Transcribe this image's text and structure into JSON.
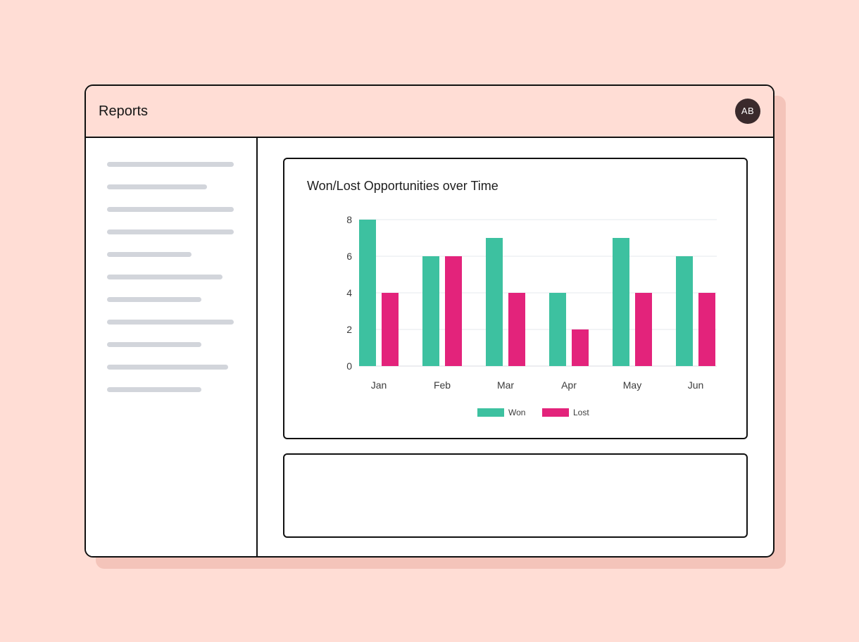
{
  "app": {
    "title": "Reports",
    "avatar_initials": "AB"
  },
  "colors": {
    "won": "#3DC1A0",
    "lost": "#E3237B",
    "background": "#FFDDD5"
  },
  "chart_data": {
    "type": "bar",
    "title": "Won/Lost Opportunities over Time",
    "categories": [
      "Jan",
      "Feb",
      "Mar",
      "Apr",
      "May",
      "Jun"
    ],
    "series": [
      {
        "name": "Won",
        "values": [
          8,
          6,
          7,
          4,
          7,
          6
        ]
      },
      {
        "name": "Lost",
        "values": [
          4,
          6,
          4,
          2,
          4,
          4
        ]
      }
    ],
    "ylim": [
      0,
      8
    ],
    "yticks": [
      0,
      2,
      4,
      6,
      8
    ],
    "grid": true,
    "legend": "bottom-center"
  }
}
